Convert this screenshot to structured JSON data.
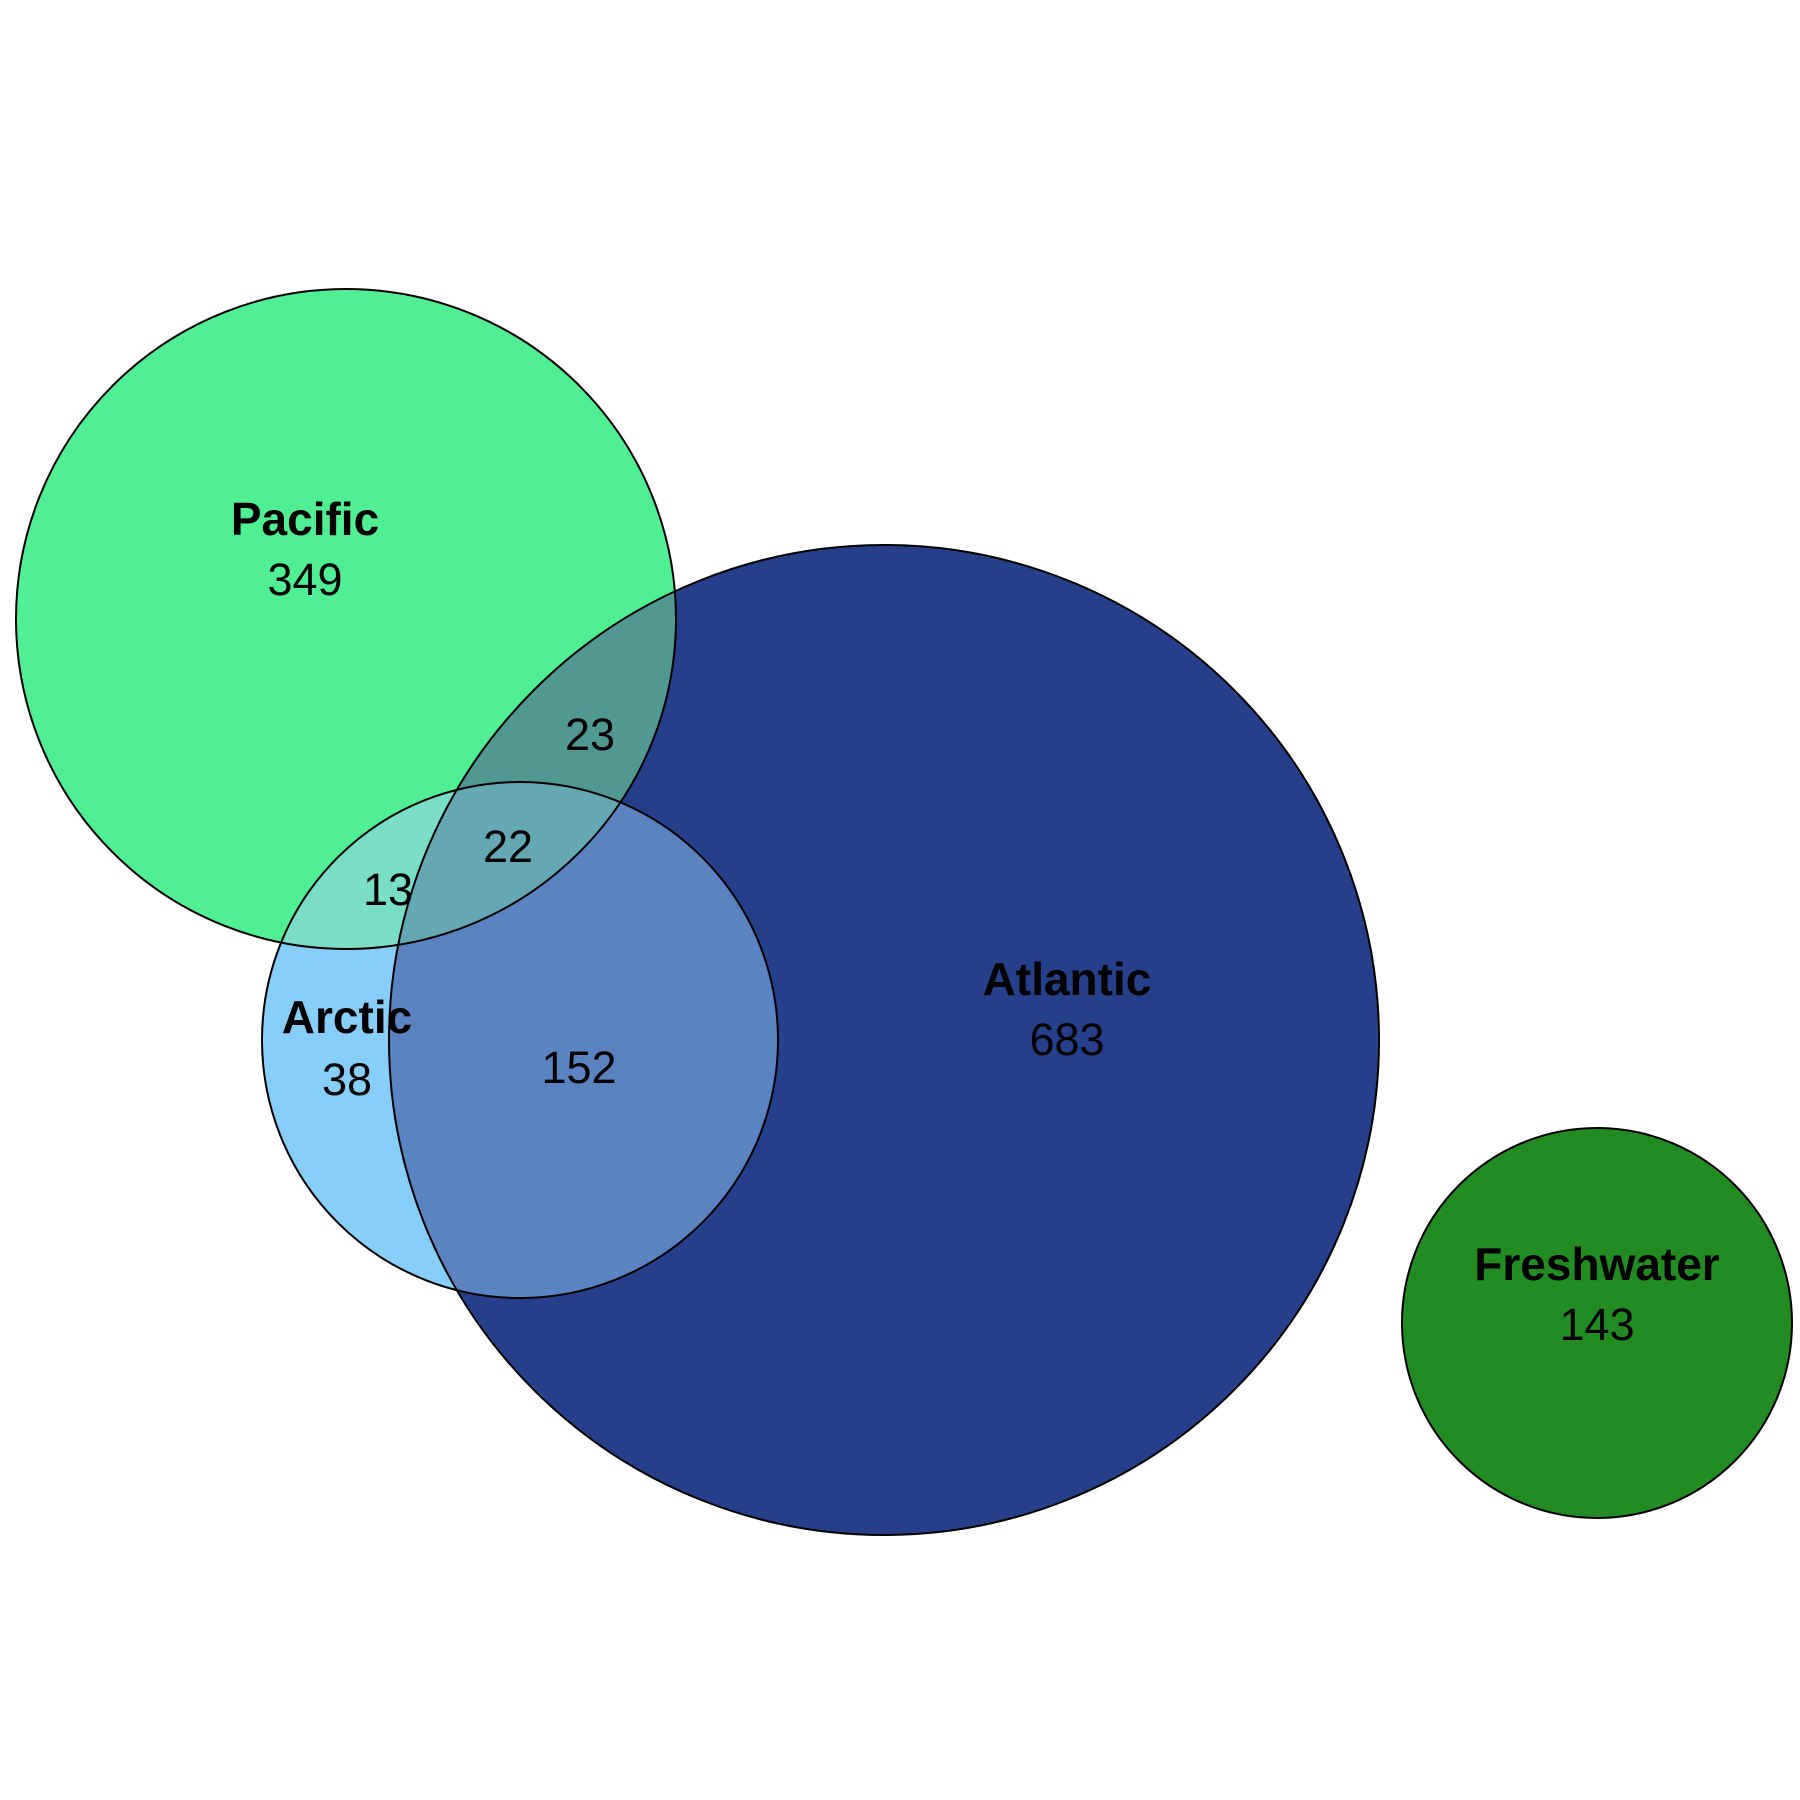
{
  "sets": [
    {
      "id": "pacific",
      "label": "Pacific",
      "only": "349",
      "color": "#50EF93"
    },
    {
      "id": "atlantic",
      "label": "Atlantic",
      "only": "683",
      "color": "#263F8A"
    },
    {
      "id": "arctic",
      "label": "Arctic",
      "only": "38",
      "color": "#87CEFA"
    },
    {
      "id": "freshwater",
      "label": "Freshwater",
      "only": "143",
      "color": "#228B22"
    }
  ],
  "intersections": {
    "pacific_atlantic": "23",
    "pacific_arctic_atlantic": "22",
    "pacific_arctic": "13",
    "arctic_atlantic": "152"
  },
  "region_colors": {
    "pacific_atlantic": "#519792",
    "pacific_arctic": "#7ADDC6",
    "pacific_arctic_atlantic": "#65A8B4",
    "arctic_atlantic": "#5B83C1"
  }
}
